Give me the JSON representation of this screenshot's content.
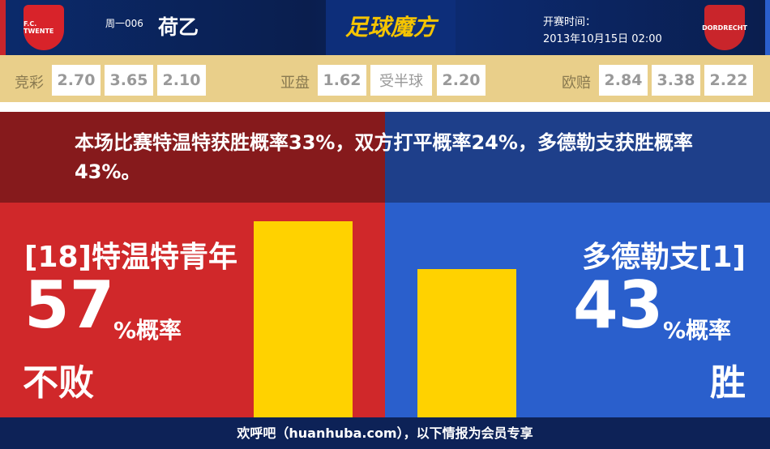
{
  "header": {
    "home_logo_text": "F.C. TWENTE",
    "match_no": "周一006",
    "league": "荷乙",
    "brand": "足球魔方",
    "kickoff_label": "开赛时间：",
    "kickoff_time": "2013年10月15日 02:00",
    "away_logo_text": "DORDRECHT"
  },
  "odds": {
    "jc_label": "竞彩",
    "jc": [
      "2.70",
      "3.65",
      "2.10"
    ],
    "ah_label": "亚盘",
    "ah": [
      "1.62",
      "受半球",
      "2.20"
    ],
    "eu_label": "欧赔",
    "eu": [
      "2.84",
      "3.38",
      "2.22"
    ]
  },
  "summary": "本场比赛特温特获胜概率33%，双方打平概率24%，多德勒支获胜概率43%。",
  "home": {
    "name": "[18]特温特青年",
    "percent": "57",
    "unit": "%概率",
    "outcome": "不败"
  },
  "away": {
    "name": "多德勒支[1]",
    "percent": "43",
    "unit": "%概率",
    "outcome": "胜"
  },
  "chart_data": {
    "type": "bar",
    "categories": [
      "特温特青年 不败",
      "多德勒支 胜"
    ],
    "values": [
      57,
      43
    ],
    "colors": {
      "bar": "#ffd200",
      "home": "#d0282a",
      "away": "#2a5fcc"
    }
  },
  "footer": "欢呼吧（huanhuba.com），以下情报为会员专享"
}
